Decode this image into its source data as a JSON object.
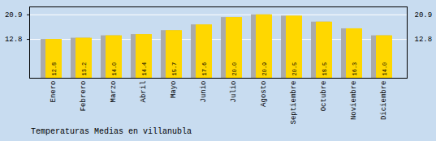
{
  "chart_data": {
    "type": "bar",
    "title": "Temperaturas Medias en villanubla",
    "categories": [
      "Enero",
      "Febrero",
      "Marzo",
      "Abril",
      "Mayo",
      "Junio",
      "Julio",
      "Agosto",
      "Septiembre",
      "Octubre",
      "Noviembre",
      "Diciembre"
    ],
    "values": [
      12.8,
      13.2,
      14.0,
      14.4,
      15.7,
      17.6,
      20.0,
      20.9,
      20.5,
      18.5,
      16.3,
      14.0
    ],
    "value_labels": [
      "12.8",
      "13.2",
      "14.0",
      "14.4",
      "15.7",
      "17.6",
      "20.0",
      "20.9",
      "20.5",
      "18.5",
      "16.3",
      "14.0"
    ],
    "color": "#FFD700",
    "ylim": [
      0,
      23.5
    ],
    "yticks": [
      12.8,
      20.9
    ],
    "grid": true,
    "data_labels": true
  }
}
